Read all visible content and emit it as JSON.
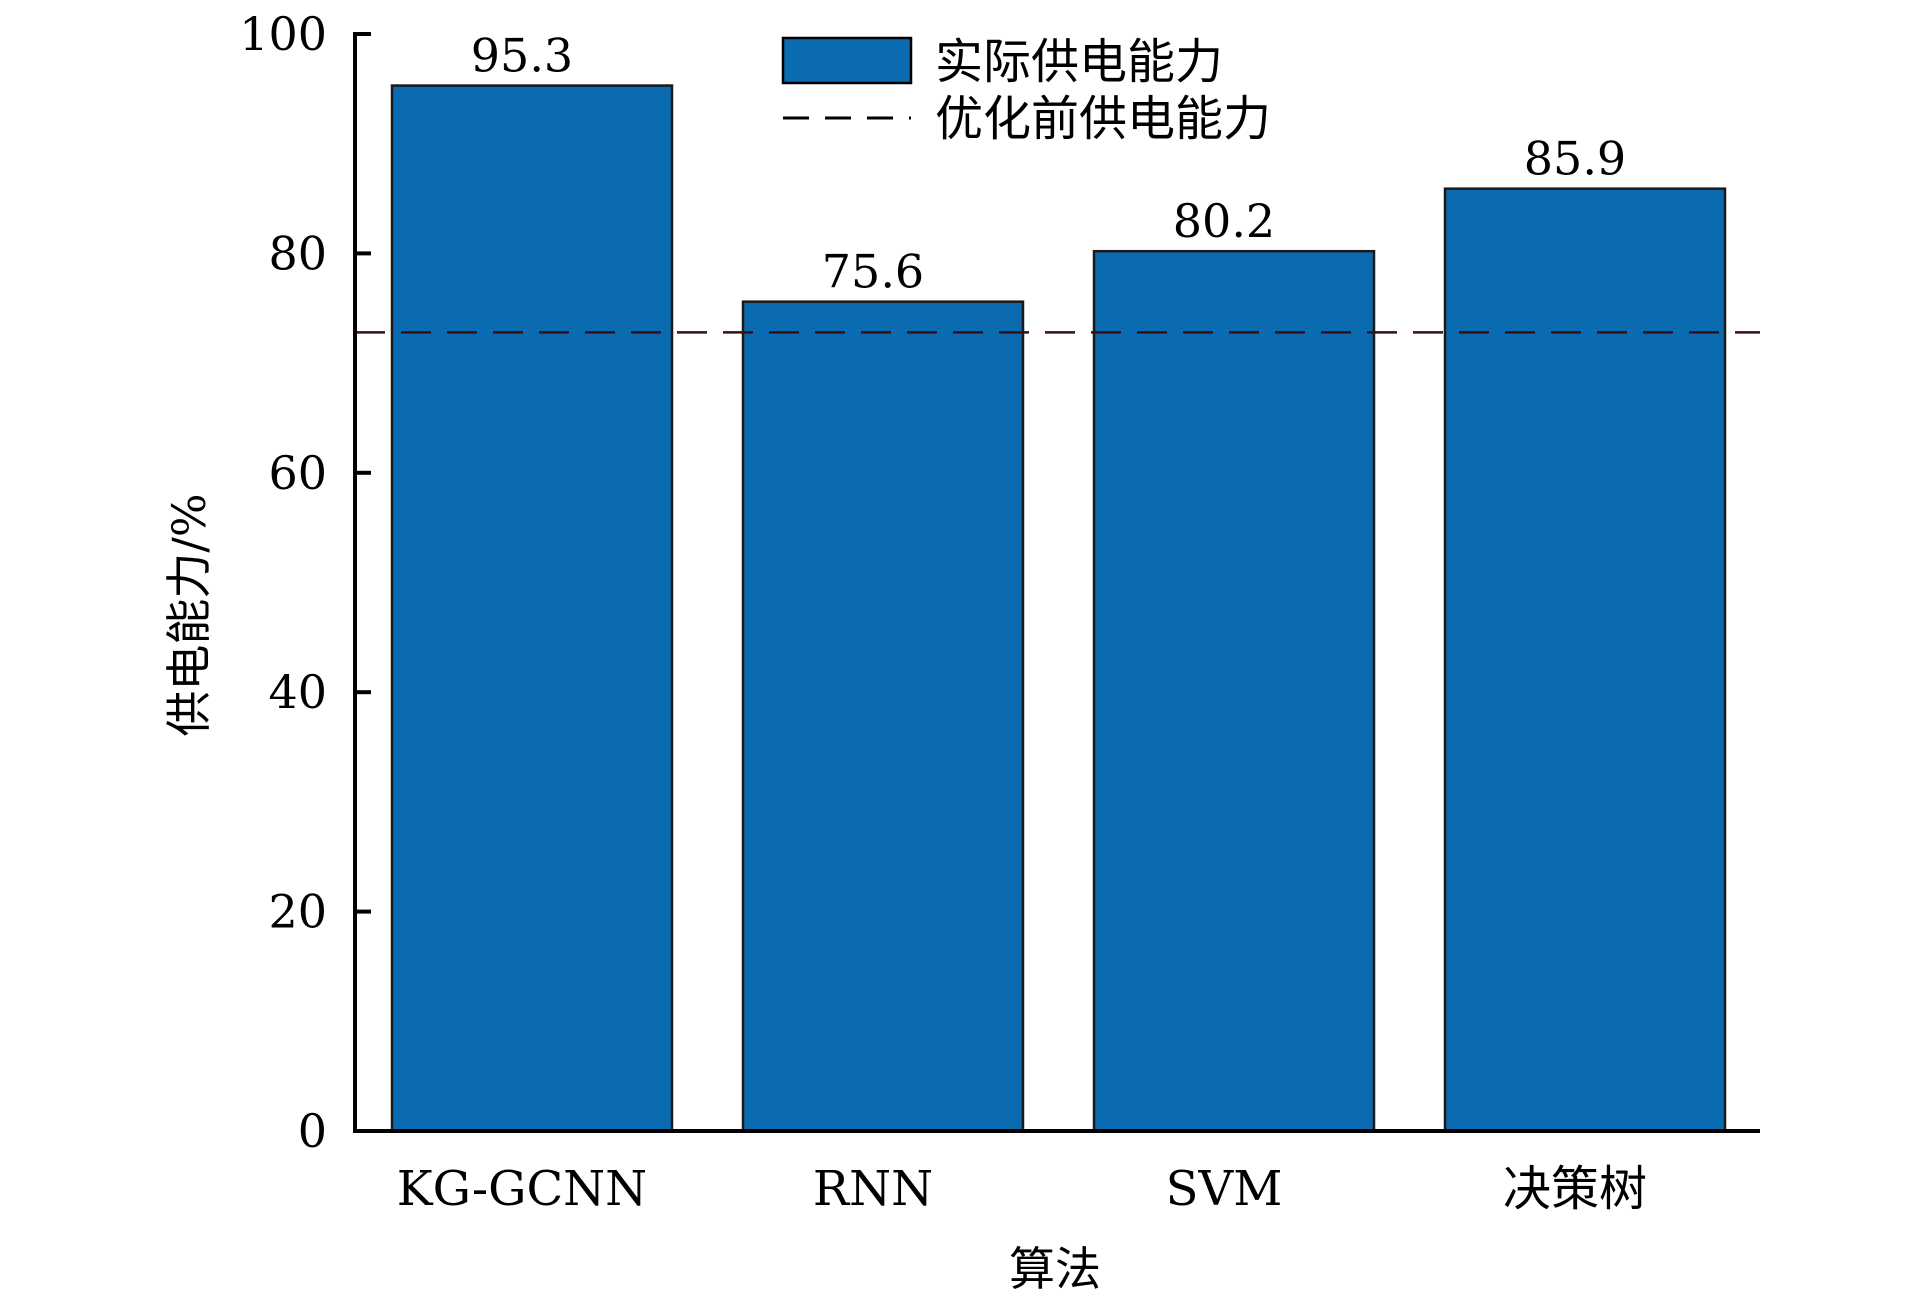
{
  "chart_data": {
    "type": "bar",
    "title": "",
    "xlabel": "算法",
    "ylabel": "供电能力/%",
    "categories": [
      "KG-GCNN",
      "RNN",
      "SVM",
      "决策树"
    ],
    "series": [
      {
        "name": "实际供电能力",
        "values": [
          95.3,
          75.6,
          80.2,
          85.9
        ],
        "color": "#0b6bb0"
      }
    ],
    "data_labels": [
      "95.3",
      "75.6",
      "80.2",
      "85.9"
    ],
    "reference_line": {
      "name": "优化前供电能力",
      "value": 72.8,
      "style": "dashed",
      "color": "#3a0f0f"
    },
    "ylim": [
      0,
      100
    ],
    "yticks": [
      "0",
      "20",
      "40",
      "60",
      "80",
      "100"
    ],
    "grid": false,
    "legend_position": "top-center"
  }
}
